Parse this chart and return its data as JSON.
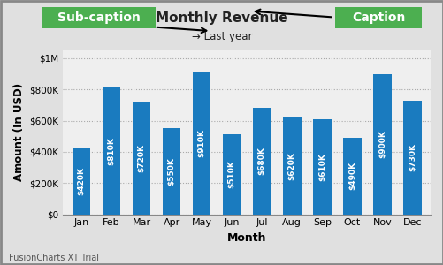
{
  "categories": [
    "Jan",
    "Feb",
    "Mar",
    "Apr",
    "May",
    "Jun",
    "Jul",
    "Aug",
    "Sep",
    "Oct",
    "Nov",
    "Dec"
  ],
  "values": [
    420000,
    810000,
    720000,
    550000,
    910000,
    510000,
    680000,
    620000,
    610000,
    490000,
    900000,
    730000
  ],
  "bar_labels": [
    "$420K",
    "$810K",
    "$720K",
    "$550K",
    "$910K",
    "$510K",
    "$680K",
    "$620K",
    "$610K",
    "$490K",
    "$900K",
    "$730K"
  ],
  "bar_color": "#1a7bbf",
  "background_color": "#e0e0e0",
  "plot_bg_color": "#efefef",
  "title": "Monthly Revenue",
  "sub_caption": "Last year",
  "caption_text": "Caption",
  "subcaption_text": "Sub-caption",
  "xlabel": "Month",
  "ylabel": "Amount (In USD)",
  "ytick_labels": [
    "$0",
    "$200K",
    "$400K",
    "$600K",
    "$800K",
    "$1M"
  ],
  "ytick_values": [
    0,
    200000,
    400000,
    600000,
    800000,
    1000000
  ],
  "ylim": [
    0,
    1050000
  ],
  "footer": "FusionCharts XT Trial",
  "grid_color": "#aaaaaa",
  "label_color": "#ffffff",
  "caption_bg": "#4caf50",
  "subcaption_bg": "#4caf50",
  "title_color": "#222222",
  "border_color": "#888888"
}
